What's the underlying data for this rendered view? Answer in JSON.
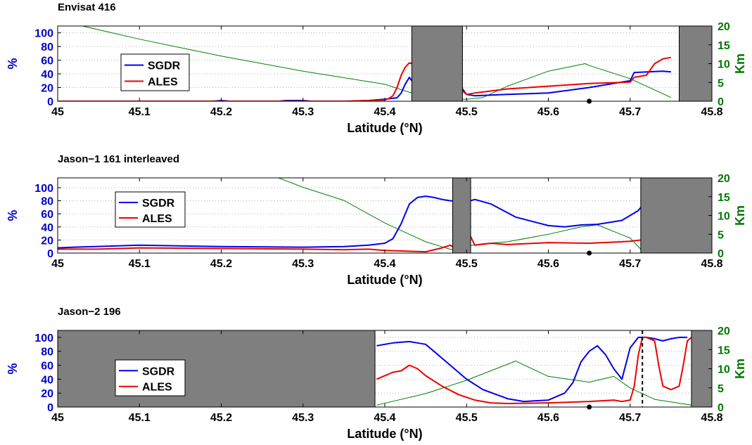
{
  "chart_data": [
    {
      "type": "line",
      "title": "Envisat 416",
      "xlabel": "Latitude (°N)",
      "ylabel": "%",
      "ylabel_right": "Km",
      "xlim": [
        45,
        45.8
      ],
      "xticks": [
        "45",
        "45.1",
        "45.2",
        "45.3",
        "45.4",
        "45.5",
        "45.6",
        "45.7",
        "45.8"
      ],
      "ylim": [
        0,
        110
      ],
      "yticks": [
        "0",
        "20",
        "40",
        "60",
        "80",
        "100"
      ],
      "ylim_right": [
        0,
        20
      ],
      "yticks_right": [
        "0",
        "5",
        "10",
        "15",
        "20"
      ],
      "grid": "horizontal dotted",
      "legend_position": "left",
      "colors": {
        "SGDR": "#0000ee",
        "ALES": "#ee0000",
        "distance": "#008000",
        "gap": "#7f7f7f",
        "left_axis": "#0000cc",
        "right_axis": "#007a00"
      },
      "gaps": [
        [
          45.433,
          45.495
        ],
        [
          45.76,
          45.8
        ]
      ],
      "marker": {
        "x": 45.65,
        "y": 0
      },
      "series": [
        {
          "name": "SGDR",
          "x": [
            45.0,
            45.19,
            45.2,
            45.21,
            45.27,
            45.28,
            45.3,
            45.31,
            45.36,
            45.38,
            45.4,
            45.415,
            45.42,
            45.425,
            45.43,
            45.433,
            45.495,
            45.5,
            45.51,
            45.55,
            45.6,
            45.65,
            45.7,
            45.705,
            45.74,
            45.75
          ],
          "values": [
            0,
            0,
            1,
            0,
            0,
            1,
            1,
            0,
            0,
            1,
            3,
            5,
            12,
            25,
            35,
            30,
            18,
            10,
            8,
            10,
            12,
            20,
            30,
            42,
            44,
            43
          ]
        },
        {
          "name": "ALES",
          "x": [
            45.0,
            45.35,
            45.38,
            45.4,
            45.405,
            45.41,
            45.415,
            45.42,
            45.425,
            45.43,
            45.433,
            45.495,
            45.5,
            45.51,
            45.55,
            45.6,
            45.65,
            45.7,
            45.705,
            45.72,
            45.73,
            45.74,
            45.75
          ],
          "values": [
            0,
            0,
            1,
            2,
            4,
            8,
            20,
            38,
            50,
            56,
            55,
            15,
            10,
            12,
            18,
            22,
            26,
            28,
            35,
            38,
            55,
            62,
            64
          ]
        },
        {
          "name": "",
          "axis": "right",
          "x": [
            45.03,
            45.1,
            45.2,
            45.3,
            45.4,
            45.45,
            45.5,
            45.52,
            45.55,
            45.6,
            45.645,
            45.65,
            45.7,
            45.75
          ],
          "values": [
            20,
            16.5,
            12,
            8,
            4.5,
            1,
            0.5,
            1,
            4,
            8,
            10,
            9.5,
            6,
            1
          ]
        }
      ]
    },
    {
      "type": "line",
      "title": "Jason−1 161 interleaved",
      "xlabel": "Latitude (°N)",
      "ylabel": "%",
      "ylabel_right": "Km",
      "xlim": [
        45,
        45.8
      ],
      "xticks": [
        "45",
        "45.1",
        "45.2",
        "45.3",
        "45.4",
        "45.5",
        "45.6",
        "45.7",
        "45.8"
      ],
      "ylim": [
        0,
        115
      ],
      "yticks": [
        "0",
        "20",
        "40",
        "60",
        "80",
        "100"
      ],
      "ylim_right": [
        0,
        20
      ],
      "yticks_right": [
        "0",
        "5",
        "10",
        "15",
        "20"
      ],
      "grid": "horizontal dotted",
      "legend_position": "left",
      "colors": {
        "SGDR": "#0000ee",
        "ALES": "#ee0000",
        "distance": "#008000",
        "gap": "#7f7f7f",
        "left_axis": "#0000cc",
        "right_axis": "#007a00"
      },
      "gaps": [
        [
          45.483,
          45.505
        ],
        [
          45.713,
          45.8
        ]
      ],
      "marker": {
        "x": 45.65,
        "y": 0
      },
      "series": [
        {
          "name": "SGDR",
          "x": [
            45.0,
            45.02,
            45.1,
            45.2,
            45.3,
            45.35,
            45.38,
            45.4,
            45.41,
            45.42,
            45.43,
            45.44,
            45.45,
            45.46,
            45.47,
            45.48,
            45.483,
            45.505,
            45.51,
            45.53,
            45.56,
            45.6,
            45.62,
            45.64,
            45.66,
            45.69,
            45.71,
            45.713
          ],
          "values": [
            8,
            9,
            12,
            10,
            9,
            10,
            12,
            15,
            22,
            45,
            75,
            85,
            87,
            85,
            82,
            80,
            80,
            80,
            82,
            75,
            55,
            42,
            40,
            43,
            44,
            50,
            65,
            70
          ]
        },
        {
          "name": "ALES",
          "x": [
            45.0,
            45.05,
            45.1,
            45.2,
            45.3,
            45.35,
            45.38,
            45.4,
            45.45,
            45.47,
            45.48,
            45.483,
            45.505,
            45.51,
            45.53,
            45.55,
            45.6,
            45.65,
            45.7,
            45.713
          ],
          "values": [
            6,
            6,
            8,
            7,
            6,
            5,
            6,
            4,
            2,
            8,
            12,
            10,
            25,
            12,
            15,
            13,
            16,
            15,
            18,
            20
          ]
        },
        {
          "name": "",
          "axis": "right",
          "x": [
            45.27,
            45.3,
            45.35,
            45.4,
            45.45,
            45.48,
            45.483,
            45.505,
            45.52,
            45.55,
            45.6,
            45.64,
            45.66,
            45.7,
            45.713
          ],
          "values": [
            20,
            17.5,
            14,
            8,
            3,
            1,
            1,
            2,
            2.5,
            3,
            5,
            7,
            7.5,
            4,
            1
          ]
        }
      ]
    },
    {
      "type": "line",
      "title": "Jason−2 196",
      "xlabel": "Latitude (°N)",
      "ylabel": "%",
      "ylabel_right": "Km",
      "xlim": [
        45,
        45.8
      ],
      "xticks": [
        "45",
        "45.1",
        "45.2",
        "45.3",
        "45.4",
        "45.5",
        "45.6",
        "45.7",
        "45.8"
      ],
      "ylim": [
        0,
        110
      ],
      "yticks": [
        "0",
        "20",
        "40",
        "60",
        "80",
        "100"
      ],
      "ylim_right": [
        0,
        20
      ],
      "yticks_right": [
        "0",
        "5",
        "10",
        "15",
        "20"
      ],
      "grid": "horizontal dotted",
      "legend_position": "left",
      "colors": {
        "SGDR": "#0000ee",
        "ALES": "#ee0000",
        "distance": "#008000",
        "gap": "#7f7f7f",
        "left_axis": "#0000cc",
        "right_axis": "#007a00"
      },
      "gaps": [
        [
          45.0,
          45.388
        ],
        [
          45.775,
          45.8
        ]
      ],
      "vline_x": 45.715,
      "marker": {
        "x": 45.65,
        "y": 0
      },
      "series": [
        {
          "name": "SGDR",
          "x": [
            45.39,
            45.4,
            45.41,
            45.42,
            45.43,
            45.44,
            45.45,
            45.46,
            45.48,
            45.5,
            45.52,
            45.55,
            45.57,
            45.6,
            45.62,
            45.63,
            45.64,
            45.65,
            45.66,
            45.67,
            45.68,
            45.69,
            45.7,
            45.71,
            45.72,
            45.73,
            45.74,
            45.75,
            45.76,
            45.77
          ],
          "values": [
            88,
            90,
            92,
            93,
            94,
            92,
            90,
            80,
            60,
            40,
            25,
            12,
            8,
            10,
            20,
            35,
            65,
            80,
            88,
            75,
            55,
            40,
            85,
            100,
            100,
            98,
            95,
            98,
            100,
            100
          ]
        },
        {
          "name": "ALES",
          "x": [
            45.39,
            45.4,
            45.41,
            45.42,
            45.43,
            45.44,
            45.45,
            45.47,
            45.49,
            45.51,
            45.53,
            45.55,
            45.6,
            45.65,
            45.68,
            45.69,
            45.7,
            45.705,
            45.71,
            45.715,
            45.72,
            45.73,
            45.735,
            45.74,
            45.75,
            45.76,
            45.765,
            45.77,
            45.775
          ],
          "values": [
            40,
            45,
            50,
            52,
            60,
            55,
            45,
            30,
            18,
            10,
            6,
            5,
            6,
            8,
            10,
            8,
            10,
            30,
            75,
            100,
            100,
            95,
            60,
            30,
            25,
            30,
            60,
            95,
            100
          ]
        },
        {
          "name": "",
          "axis": "right",
          "x": [
            45.39,
            45.45,
            45.5,
            45.56,
            45.6,
            45.65,
            45.68,
            45.7,
            45.73,
            45.775
          ],
          "values": [
            0.5,
            3.5,
            7,
            12,
            8,
            6.5,
            8,
            5,
            2,
            0.5
          ]
        }
      ]
    }
  ]
}
